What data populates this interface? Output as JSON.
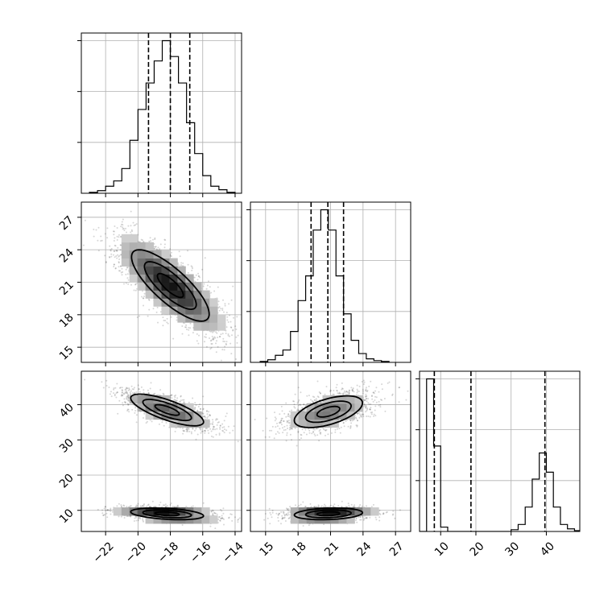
{
  "chart_data": {
    "type": "corner",
    "parameters": [
      {
        "range": [
          -23.5,
          -13.6
        ],
        "ticks": [
          -22,
          -20,
          -18,
          -16,
          -14
        ],
        "tick_labels": [
          "−22",
          "−20",
          "−18",
          "−16",
          "−14"
        ],
        "quantile_lines": [
          -19.35,
          -18.0,
          -16.8
        ],
        "histogram": {
          "bin_edges": [
            -23.0,
            -22.5,
            -22.0,
            -21.5,
            -21.0,
            -20.5,
            -20.0,
            -19.5,
            -19.0,
            -18.5,
            -18.0,
            -17.5,
            -17.0,
            -16.5,
            -16.0,
            -15.5,
            -15.0,
            -14.5,
            -14.0
          ],
          "counts": [
            1,
            3,
            8,
            14,
            28,
            60,
            95,
            125,
            150,
            173,
            155,
            125,
            80,
            45,
            20,
            8,
            4,
            1
          ]
        }
      },
      {
        "range": [
          13.6,
          28.4
        ],
        "ticks": [
          15,
          18,
          21,
          24,
          27
        ],
        "tick_labels": [
          "15",
          "18",
          "21",
          "24",
          "27"
        ],
        "quantile_lines": [
          19.2,
          20.75,
          22.2
        ],
        "histogram": {
          "bin_edges": [
            14.5,
            15.2,
            15.9,
            16.6,
            17.3,
            18.0,
            18.7,
            19.4,
            20.1,
            20.8,
            21.5,
            22.2,
            22.9,
            23.6,
            24.3,
            25.0,
            25.7,
            26.4
          ],
          "counts": [
            1,
            3,
            8,
            14,
            35,
            70,
            98,
            150,
            173,
            150,
            98,
            55,
            25,
            10,
            4,
            2,
            1
          ]
        }
      },
      {
        "range": [
          4.0,
          49.5
        ],
        "ticks": [
          10,
          20,
          30,
          40
        ],
        "tick_labels": [
          "10",
          "20",
          "30",
          "40"
        ],
        "quantile_lines": [
          8.2,
          18.6,
          39.6
        ],
        "histogram": {
          "bin_edges": [
            4.0,
            6.0,
            8.0,
            10.0,
            12.0,
            14.0,
            16.0,
            18.0,
            20.0,
            22.0,
            24.0,
            26.0,
            28.0,
            30.0,
            32.0,
            34.0,
            36.0,
            38.0,
            40.0,
            42.0,
            44.0,
            46.0,
            48.0,
            49.5
          ],
          "counts": [
            0,
            175,
            98,
            5,
            0,
            0,
            0,
            0,
            0,
            0,
            0,
            0,
            0,
            2,
            8,
            28,
            60,
            90,
            68,
            28,
            8,
            3,
            1
          ]
        }
      }
    ],
    "correlations": [
      {
        "row": 1,
        "col": 0,
        "modes": [
          {
            "mean": [
              -18.0,
              20.7
            ],
            "sd": [
              1.6,
              2.2
            ],
            "rho": -0.8,
            "weight": 1.0
          }
        ]
      },
      {
        "row": 2,
        "col": 0,
        "modes": [
          {
            "mean": [
              -18.2,
              38.5
            ],
            "sd": [
              1.5,
              3.0
            ],
            "rho": -0.75,
            "weight": 0.5
          },
          {
            "mean": [
              -18.2,
              9.0
            ],
            "sd": [
              1.5,
              1.1
            ],
            "rho": -0.35,
            "weight": 0.5
          }
        ]
      },
      {
        "row": 2,
        "col": 1,
        "modes": [
          {
            "mean": [
              20.8,
              38.0
            ],
            "sd": [
              2.1,
              3.0
            ],
            "rho": 0.55,
            "weight": 0.5
          },
          {
            "mean": [
              20.8,
              9.0
            ],
            "sd": [
              2.1,
              1.1
            ],
            "rho": 0.2,
            "weight": 0.5
          }
        ]
      }
    ],
    "grid": true,
    "xlabels": [
      "",
      "",
      ""
    ],
    "ylabels": [
      "",
      "",
      ""
    ]
  }
}
